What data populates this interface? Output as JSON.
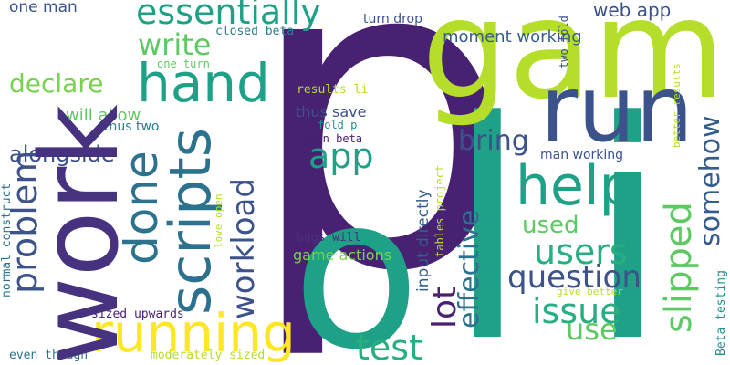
{
  "palette": {
    "background": "#ffffff",
    "dark_purple": "#482173",
    "purple": "#46327e",
    "indigo": "#3b528b",
    "slate": "#365c8d",
    "blue": "#2c728e",
    "teal_blue": "#287d8e",
    "teal": "#21918c",
    "green_teal": "#1fa187",
    "sea_green": "#29af7f",
    "green": "#5ec962",
    "light_green": "#7ad151",
    "lime": "#b5de2b",
    "yellow": "#fde725"
  },
  "words": [
    {
      "text": "p",
      "color": "#482173"
    },
    {
      "text": "l",
      "color": "#1fa187"
    },
    {
      "text": "i",
      "color": "#1fa187"
    },
    {
      "text": "o",
      "color": "#1fa187"
    },
    {
      "text": "game",
      "color": "#b5de2b"
    },
    {
      "text": "run",
      "color": "#3b528b"
    },
    {
      "text": "work",
      "color": "#46327e"
    },
    {
      "text": "essentially",
      "color": "#1fa187"
    },
    {
      "text": "hand",
      "color": "#1fa187"
    },
    {
      "text": "write",
      "color": "#5ec962"
    },
    {
      "text": "declare",
      "color": "#7ad151"
    },
    {
      "text": "done",
      "color": "#2c728e"
    },
    {
      "text": "scripts",
      "color": "#2c728e"
    },
    {
      "text": "help",
      "color": "#1fa187"
    },
    {
      "text": "running",
      "color": "#fde725"
    },
    {
      "text": "app",
      "color": "#1fa187"
    },
    {
      "text": "bring",
      "color": "#3b528b"
    },
    {
      "text": "workload",
      "color": "#3b528b"
    },
    {
      "text": "problem",
      "color": "#3b528b"
    },
    {
      "text": "alongside",
      "color": "#3b528b"
    },
    {
      "text": "test",
      "color": "#29af7f"
    },
    {
      "text": "users",
      "color": "#29af7f"
    },
    {
      "text": "used",
      "color": "#5ec962"
    },
    {
      "text": "question",
      "color": "#3b528b"
    },
    {
      "text": "issue",
      "color": "#29af7f"
    },
    {
      "text": "use",
      "color": "#5ec962"
    },
    {
      "text": "slipped",
      "color": "#5ec962"
    },
    {
      "text": "somehow",
      "color": "#365c8d"
    },
    {
      "text": "lot",
      "color": "#482173"
    },
    {
      "text": "effective",
      "color": "#2c728e"
    },
    {
      "text": "will allow",
      "color": "#5ec962"
    },
    {
      "text": "thus save",
      "color": "#3b528b"
    },
    {
      "text": "game actions",
      "color": "#7ad151"
    },
    {
      "text": "input directly",
      "color": "#365c8d"
    },
    {
      "text": "one man",
      "color": "#3b528b"
    },
    {
      "text": "turn drop",
      "color": "#3b528b"
    },
    {
      "text": "moment working",
      "color": "#365c8d"
    },
    {
      "text": "web app",
      "color": "#3b528b"
    },
    {
      "text": "closed beta",
      "color": "#287d8e"
    },
    {
      "text": "one turn",
      "color": "#5ec962"
    },
    {
      "text": "two fold",
      "color": "#3b528b"
    },
    {
      "text": "thus two",
      "color": "#287d8e"
    },
    {
      "text": "results li",
      "color": "#b5de2b"
    },
    {
      "text": "fold p",
      "color": "#21918c"
    },
    {
      "text": "open beta",
      "color": "#482173"
    },
    {
      "text": "man working",
      "color": "#3b528b"
    },
    {
      "text": "better results",
      "color": "#b5de2b"
    },
    {
      "text": "love open",
      "color": "#b5de2b"
    },
    {
      "text": "bugs will",
      "color": "#46327e"
    },
    {
      "text": "tables project",
      "color": "#b5de2b"
    },
    {
      "text": "normal construct",
      "color": "#2c728e"
    },
    {
      "text": "sized upwards",
      "color": "#482173"
    },
    {
      "text": "even though",
      "color": "#2c728e"
    },
    {
      "text": "moderately sized",
      "color": "#b5de2b"
    },
    {
      "text": "give better",
      "color": "#b5de2b"
    },
    {
      "text": "Beta testing",
      "color": "#21918c"
    }
  ]
}
